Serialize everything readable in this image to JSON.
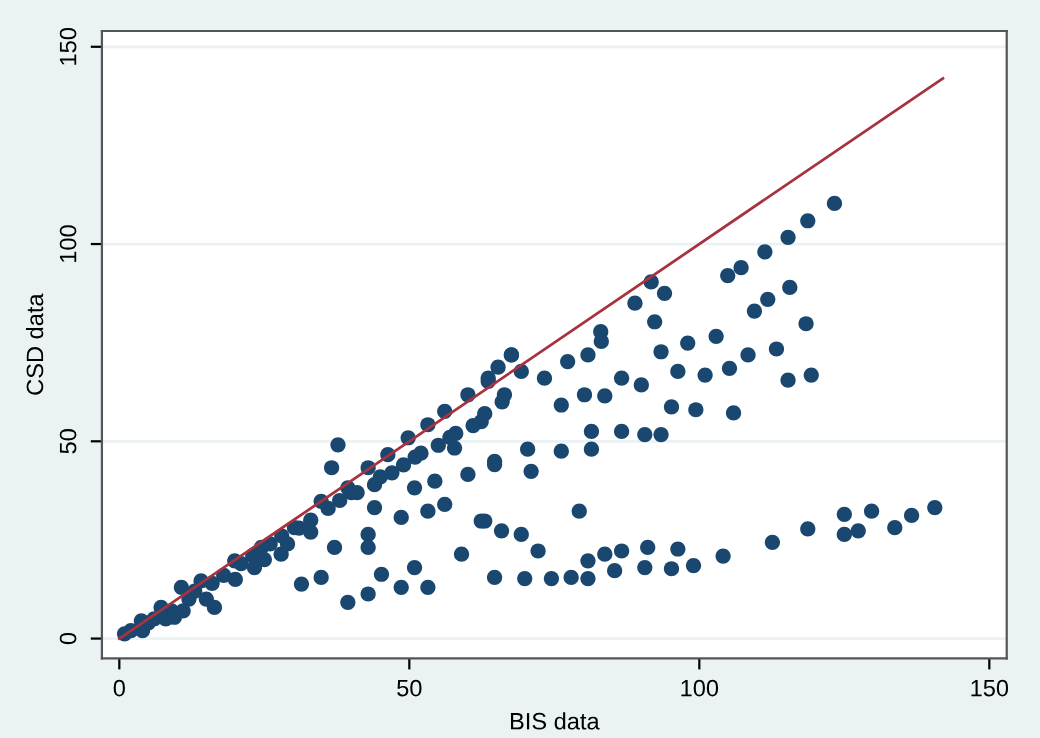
{
  "chart_data": {
    "type": "scatter",
    "xlabel": "BIS data",
    "ylabel": "CSD data",
    "xlim": [
      -3,
      153
    ],
    "ylim": [
      -5,
      154
    ],
    "xticks": [
      0,
      50,
      100,
      150
    ],
    "yticks": [
      0,
      50,
      100,
      150
    ],
    "grid": "y",
    "marker": "circle",
    "legend": false,
    "series": [
      {
        "color": "#1a476f",
        "x": [
          2,
          5,
          6,
          9,
          12,
          13,
          16,
          18,
          21,
          23,
          26,
          28,
          31,
          33,
          36,
          38,
          40,
          41,
          44,
          45,
          47,
          49,
          51,
          52,
          55,
          57,
          58,
          61,
          63,
          66,
          4,
          8,
          11,
          15,
          20,
          25,
          29,
          33,
          0.9,
          3.8,
          7.2,
          10.7,
          14.1,
          19.9,
          24.5,
          30.2,
          34.8,
          39.4,
          36.6,
          37.7,
          42.9,
          46.3,
          49.8,
          53.2,
          56.1,
          60.1,
          63.6,
          65.3,
          67.6,
          9.5,
          16.4,
          23.3,
          27.9,
          37.1,
          42.9,
          48.6,
          53.2,
          56.1,
          59,
          62.4,
          31.4,
          34.8,
          39.4,
          42.9,
          45.2,
          48.6,
          50.9,
          53.2,
          54.4,
          60.1,
          64.7,
          42.9,
          44,
          50.9,
          57.8,
          62.4,
          123.3,
          118.7,
          115.3,
          111.3,
          107.2,
          104.9,
          115.6,
          111.8,
          109.5,
          118.4,
          113.3,
          119.3,
          115.3,
          105.9,
          99.4,
          108.4,
          102.9,
          105.2,
          101,
          98,
          94,
          88.9,
          92.3,
          93.4,
          96.3,
          95.2,
          93.4,
          90.6,
          90,
          86.6,
          83.1,
          80.8,
          77.3,
          73.3,
          76.2,
          80.2,
          83.7,
          86.6,
          81.4,
          81.4,
          76.2,
          70.4,
          71,
          64.7,
          66.4,
          69.3,
          67.6,
          63.6,
          83,
          91.7,
          140.6,
          136.6,
          133.7,
          129.7,
          127.4,
          125,
          125,
          118.7,
          112.6,
          104.1,
          99,
          96.3,
          95.2,
          91.1,
          90.6,
          86.6,
          85.4,
          83.7,
          80.8,
          80.8,
          77.9,
          74.5,
          69.9,
          64.7,
          79.3,
          72.2,
          69.3,
          65.9,
          63
        ],
        "values": [
          2,
          4,
          5,
          7,
          10,
          12,
          14,
          16,
          19,
          21,
          24,
          26,
          28,
          30,
          33,
          35,
          37,
          37,
          39,
          41,
          42,
          44,
          46,
          47,
          49,
          51,
          52,
          54,
          57,
          60,
          2,
          5,
          7,
          10,
          15,
          20,
          24,
          27,
          1.2,
          4.5,
          7.9,
          13,
          14.6,
          19.7,
          23.1,
          28.1,
          34.8,
          38.2,
          43.3,
          49.1,
          43.3,
          46.6,
          50.9,
          54.2,
          57.6,
          61.8,
          66,
          68.8,
          71.9,
          5.4,
          7.9,
          18,
          21.4,
          23.1,
          26.4,
          30.7,
          32.3,
          34,
          21.4,
          29.8,
          13.8,
          15.5,
          9.2,
          11.3,
          16.3,
          13,
          18,
          13,
          39.9,
          41.6,
          44.9,
          23.1,
          33.2,
          38.2,
          48.3,
          55,
          110.3,
          105.9,
          101.7,
          98,
          94,
          92,
          89,
          86,
          83,
          79.8,
          73.4,
          66.8,
          65.5,
          57.2,
          58,
          71.9,
          76.6,
          68.5,
          66.8,
          74.9,
          87.5,
          85,
          80.3,
          72.7,
          67.7,
          58.7,
          51.7,
          51.7,
          64.3,
          66,
          75.3,
          71.9,
          70.2,
          66,
          59.2,
          61.8,
          61.5,
          52.5,
          52.5,
          48,
          47.5,
          48,
          42.4,
          44.1,
          61.8,
          67.7,
          71.9,
          65.2,
          77.8,
          90.4,
          33.2,
          31.2,
          28.1,
          32.3,
          27.3,
          31.5,
          26.4,
          27.8,
          24.4,
          20.9,
          18.5,
          22.7,
          17.7,
          23.1,
          18,
          22.2,
          17.2,
          21.4,
          19.7,
          15.2,
          15.5,
          15.2,
          15.2,
          15.5,
          32.3,
          22.2,
          26.4,
          27.3,
          29.8
        ]
      },
      {
        "type": "line",
        "color": "#a8323e",
        "marker": "none",
        "x": [
          0,
          142
        ],
        "values": [
          0,
          142
        ]
      }
    ]
  }
}
